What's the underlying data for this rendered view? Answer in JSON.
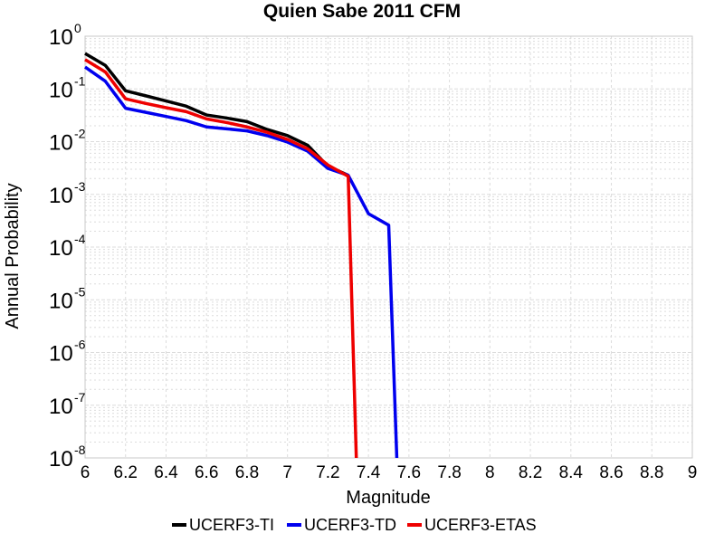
{
  "chart_data": {
    "type": "line",
    "title": "Quien Sabe 2011 CFM",
    "xlabel": "Magnitude",
    "ylabel": "Annual Probability",
    "xlim": [
      6,
      9
    ],
    "ylim": [
      1e-08,
      1
    ],
    "yscale": "log",
    "grid": true,
    "legend_position": "bottom",
    "x_ticks": [
      "6",
      "6.2",
      "6.4",
      "6.6",
      "6.8",
      "7",
      "7.2",
      "7.4",
      "7.6",
      "7.8",
      "8",
      "8.2",
      "8.4",
      "8.6",
      "8.8",
      "9"
    ],
    "y_ticks": [
      {
        "base": "10",
        "exp": "0"
      },
      {
        "base": "10",
        "exp": "-1"
      },
      {
        "base": "10",
        "exp": "-2"
      },
      {
        "base": "10",
        "exp": "-3"
      },
      {
        "base": "10",
        "exp": "-4"
      },
      {
        "base": "10",
        "exp": "-5"
      },
      {
        "base": "10",
        "exp": "-6"
      },
      {
        "base": "10",
        "exp": "-7"
      },
      {
        "base": "10",
        "exp": "-8"
      }
    ],
    "series": [
      {
        "name": "UCERF3-TI",
        "color": "#000000",
        "x": [
          6.0,
          6.1,
          6.2,
          6.3,
          6.4,
          6.5,
          6.6,
          6.7,
          6.8,
          6.9,
          7.0,
          7.1,
          7.2,
          7.3
        ],
        "y": [
          0.47,
          0.28,
          0.092,
          0.074,
          0.059,
          0.047,
          0.032,
          0.028,
          0.024,
          0.017,
          0.013,
          0.0085,
          0.0034,
          0.0023
        ]
      },
      {
        "name": "UCERF3-TD",
        "color": "#0000ee",
        "x": [
          6.0,
          6.1,
          6.2,
          6.3,
          6.4,
          6.5,
          6.6,
          6.7,
          6.8,
          6.9,
          7.0,
          7.1,
          7.2,
          7.3,
          7.4,
          7.5,
          7.54
        ],
        "y": [
          0.26,
          0.14,
          0.043,
          0.036,
          0.03,
          0.025,
          0.019,
          0.0175,
          0.016,
          0.013,
          0.0098,
          0.0066,
          0.0031,
          0.0023,
          0.00043,
          0.00026,
          1e-08
        ]
      },
      {
        "name": "UCERF3-ETAS",
        "color": "#ee0000",
        "x": [
          6.0,
          6.1,
          6.2,
          6.3,
          6.4,
          6.5,
          6.6,
          6.7,
          6.8,
          6.9,
          7.0,
          7.1,
          7.2,
          7.3,
          7.34
        ],
        "y": [
          0.36,
          0.21,
          0.065,
          0.053,
          0.044,
          0.037,
          0.027,
          0.023,
          0.019,
          0.015,
          0.011,
          0.0073,
          0.0036,
          0.0022,
          1e-08
        ]
      }
    ]
  }
}
